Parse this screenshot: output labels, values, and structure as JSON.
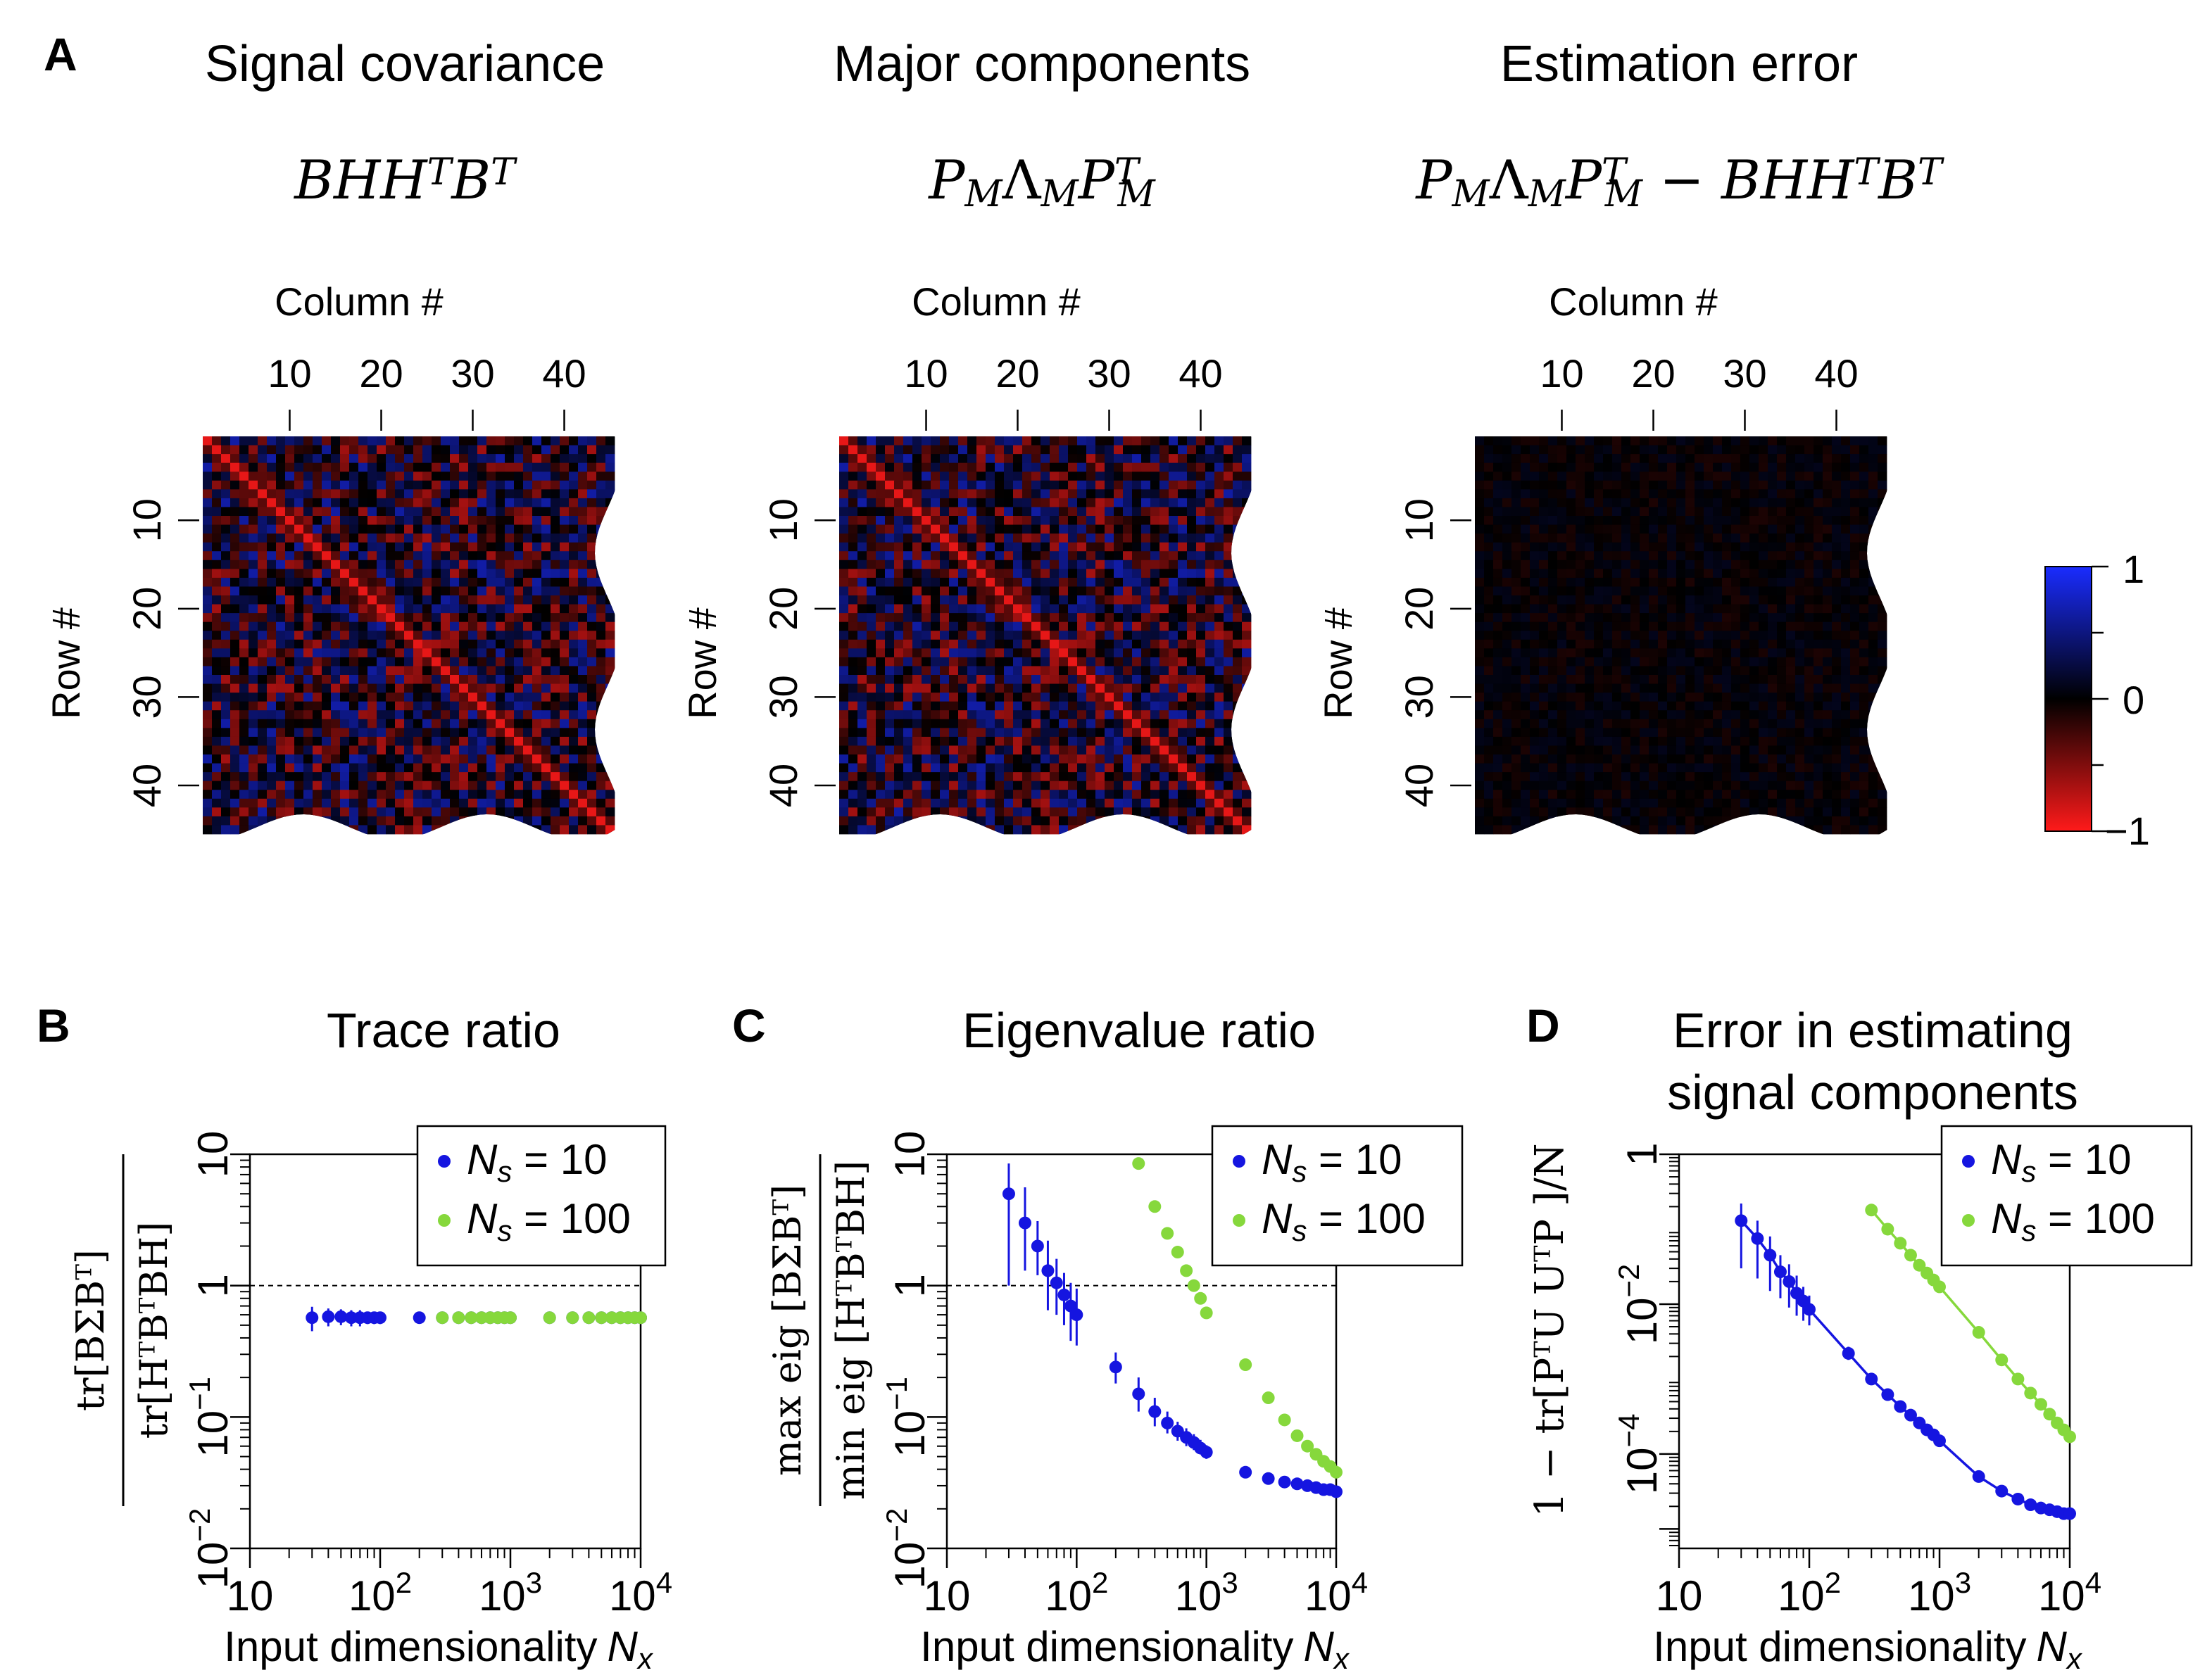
{
  "panel_letters": {
    "a": "A",
    "b": "B",
    "c": "C",
    "d": "D"
  },
  "heatmaps": {
    "colorbar": {
      "max_label": "1",
      "mid_label": "0",
      "min_label": "−1",
      "high_color": "#1a2cff",
      "mid_color": "#000000",
      "low_color": "#ff1a1a"
    },
    "column_label": "Column #",
    "row_label": "Row #",
    "col_ticks": [
      "10",
      "20",
      "30",
      "40"
    ],
    "row_ticks": [
      "10",
      "20",
      "30",
      "40"
    ],
    "size": 45,
    "panels": [
      {
        "title": "Signal covariance",
        "formula": [
          {
            "t": "B"
          },
          {
            "t": "H"
          },
          {
            "t": "H"
          },
          {
            "t": "T",
            "pos": "sup"
          },
          {
            "t": "B"
          },
          {
            "t": "T",
            "pos": "sup"
          }
        ],
        "intensity": 1.0,
        "diag": 0.9
      },
      {
        "title": "Major components",
        "formula": [
          {
            "t": "P"
          },
          {
            "t": "M",
            "pos": "sub"
          },
          {
            "t": "Λ",
            "up": true
          },
          {
            "t": "M",
            "pos": "sub"
          },
          {
            "t": "P"
          },
          {
            "t": "T",
            "pos": "supsub",
            "sub": "M"
          }
        ],
        "intensity": 1.0,
        "diag": 0.9
      },
      {
        "title": "Estimation error",
        "formula": [
          {
            "t": "P"
          },
          {
            "t": "M",
            "pos": "sub"
          },
          {
            "t": "Λ",
            "up": true
          },
          {
            "t": "M",
            "pos": "sub"
          },
          {
            "t": "P"
          },
          {
            "t": "T",
            "pos": "supsub",
            "sub": "M"
          },
          {
            "t": " − ",
            "up": true
          },
          {
            "t": "B"
          },
          {
            "t": "H"
          },
          {
            "t": "H"
          },
          {
            "t": "T",
            "pos": "sup"
          },
          {
            "t": "B"
          },
          {
            "t": "T",
            "pos": "sup"
          }
        ],
        "intensity": 0.14,
        "diag": 0.0
      }
    ]
  },
  "chart_data": [
    {
      "type": "scatter",
      "title": "Trace ratio",
      "xlabel": "Input dimensionality",
      "xlabel_var": "N",
      "xlabel_sub": "x",
      "ylabel_num": "tr[BΣBᵀ]",
      "ylabel_den": "tr[HᵀBᵀBH]",
      "x_ticks": [
        {
          "v": 10,
          "label": "10"
        },
        {
          "v": 100,
          "label": "10",
          "exp": "2"
        },
        {
          "v": 1000,
          "label": "10",
          "exp": "3"
        },
        {
          "v": 10000,
          "label": "10",
          "exp": "4"
        }
      ],
      "y_ticks": [
        {
          "v": 0.01,
          "label": "10",
          "exp": "−2"
        },
        {
          "v": 0.1,
          "label": "10",
          "exp": "−1"
        },
        {
          "v": 1,
          "label": "1"
        },
        {
          "v": 10,
          "label": "10"
        }
      ],
      "xlim": [
        10,
        10000
      ],
      "ylim": [
        0.01,
        10
      ],
      "reference_line": 1,
      "legend": [
        {
          "name": "N",
          "sub": "s",
          "value": " = 10",
          "color": "#1515e0"
        },
        {
          "name": "N",
          "sub": "s",
          "value": " = 100",
          "color": "#86d83c"
        }
      ],
      "series": [
        {
          "name": "Ns = 10",
          "color": "#1515e0",
          "x": [
            30,
            40,
            50,
            60,
            70,
            80,
            90,
            100,
            200,
            300,
            400,
            500,
            600,
            700,
            800,
            900,
            1000,
            2000,
            3000,
            4000,
            5000,
            6000,
            7000,
            8000,
            9000,
            10000
          ],
          "y": [
            0.57,
            0.58,
            0.58,
            0.57,
            0.57,
            0.57,
            0.57,
            0.57,
            0.57,
            0.57,
            0.57,
            0.57,
            0.57,
            0.57,
            0.57,
            0.57,
            0.57,
            0.57,
            0.57,
            0.57,
            0.57,
            0.57,
            0.57,
            0.57,
            0.57,
            0.57
          ],
          "err": [
            0.12,
            0.09,
            0.08,
            0.08,
            0.08,
            0.06,
            0.06,
            0.06,
            0.04,
            0.04,
            0.03,
            0.03,
            0.03,
            0.03,
            0.03,
            0.03,
            0.03,
            0.02,
            0.02,
            0.02,
            0.02,
            0.02,
            0.02,
            0.02,
            0.02,
            0.02
          ]
        },
        {
          "name": "Ns = 100",
          "color": "#86d83c",
          "x": [
            300,
            400,
            500,
            600,
            700,
            800,
            900,
            1000,
            2000,
            3000,
            4000,
            5000,
            6000,
            7000,
            8000,
            9000,
            10000
          ],
          "y": [
            0.57,
            0.57,
            0.57,
            0.57,
            0.57,
            0.57,
            0.57,
            0.57,
            0.57,
            0.57,
            0.57,
            0.57,
            0.57,
            0.57,
            0.57,
            0.57,
            0.57
          ],
          "err": [
            0.02,
            0.02,
            0.02,
            0.02,
            0.02,
            0.02,
            0.02,
            0.02,
            0.02,
            0.02,
            0.02,
            0.02,
            0.02,
            0.02,
            0.02,
            0.02,
            0.02
          ]
        }
      ]
    },
    {
      "type": "scatter",
      "title": "Eigenvalue ratio",
      "xlabel": "Input dimensionality",
      "xlabel_var": "N",
      "xlabel_sub": "x",
      "ylabel_num": "max eig [BΣBᵀ]",
      "ylabel_den": "min eig [HᵀBᵀBH]",
      "x_ticks": [
        {
          "v": 10,
          "label": "10"
        },
        {
          "v": 100,
          "label": "10",
          "exp": "2"
        },
        {
          "v": 1000,
          "label": "10",
          "exp": "3"
        },
        {
          "v": 10000,
          "label": "10",
          "exp": "4"
        }
      ],
      "y_ticks": [
        {
          "v": 0.01,
          "label": "10",
          "exp": "−2"
        },
        {
          "v": 0.1,
          "label": "10",
          "exp": "−1"
        },
        {
          "v": 1,
          "label": "1"
        },
        {
          "v": 10,
          "label": "10"
        }
      ],
      "xlim": [
        10,
        10000
      ],
      "ylim": [
        0.01,
        10
      ],
      "reference_line": 1,
      "legend": [
        {
          "name": "N",
          "sub": "s",
          "value": " = 10",
          "color": "#1515e0"
        },
        {
          "name": "N",
          "sub": "s",
          "value": " = 100",
          "color": "#86d83c"
        }
      ],
      "series": [
        {
          "name": "Ns = 10",
          "color": "#1515e0",
          "x": [
            30,
            40,
            50,
            60,
            70,
            80,
            90,
            100,
            200,
            300,
            400,
            500,
            600,
            700,
            800,
            900,
            1000,
            2000,
            3000,
            4000,
            5000,
            6000,
            7000,
            8000,
            9000,
            10000
          ],
          "y": [
            5.0,
            3.0,
            2.0,
            1.3,
            1.05,
            0.85,
            0.7,
            0.6,
            0.24,
            0.15,
            0.11,
            0.09,
            0.078,
            0.07,
            0.064,
            0.058,
            0.054,
            0.038,
            0.034,
            0.032,
            0.031,
            0.03,
            0.029,
            0.028,
            0.028,
            0.027
          ],
          "err_lo": [
            1.0,
            1.3,
            1.2,
            0.65,
            0.6,
            0.5,
            0.38,
            0.35,
            0.18,
            0.11,
            0.085,
            0.075,
            0.066,
            0.06,
            0.056,
            0.052,
            0.048,
            0.035,
            0.031,
            0.03,
            0.029,
            0.028,
            0.027,
            0.027,
            0.026,
            0.026
          ],
          "err_hi": [
            8.5,
            5.6,
            3.1,
            2.2,
            1.6,
            1.25,
            1.05,
            0.95,
            0.31,
            0.2,
            0.14,
            0.11,
            0.092,
            0.082,
            0.074,
            0.067,
            0.061,
            0.042,
            0.037,
            0.034,
            0.033,
            0.032,
            0.031,
            0.03,
            0.03,
            0.029
          ]
        },
        {
          "name": "Ns = 100",
          "color": "#86d83c",
          "x": [
            300,
            400,
            500,
            600,
            700,
            800,
            900,
            1000,
            2000,
            3000,
            4000,
            5000,
            6000,
            7000,
            8000,
            9000,
            10000
          ],
          "y": [
            8.5,
            4.0,
            2.5,
            1.8,
            1.3,
            1.0,
            0.8,
            0.62,
            0.25,
            0.14,
            0.095,
            0.072,
            0.06,
            0.052,
            0.046,
            0.042,
            0.038
          ]
        }
      ]
    },
    {
      "type": "line",
      "title": "Error in estimating",
      "title_line2": "signal components",
      "xlabel": "Input dimensionality",
      "xlabel_var": "N",
      "xlabel_sub": "x",
      "ylabel": "1 − tr[PᵀU UᵀP ]/N",
      "x_ticks": [
        {
          "v": 10,
          "label": "10"
        },
        {
          "v": 100,
          "label": "10",
          "exp": "2"
        },
        {
          "v": 1000,
          "label": "10",
          "exp": "3"
        },
        {
          "v": 10000,
          "label": "10",
          "exp": "4"
        }
      ],
      "y_ticks": [
        {
          "v": 1e-05,
          "label": ""
        },
        {
          "v": 0.0001,
          "label": "10",
          "exp": "−4"
        },
        {
          "v": 0.01,
          "label": "10",
          "exp": "−2"
        },
        {
          "v": 1,
          "label": "1"
        }
      ],
      "xlim": [
        10,
        10000
      ],
      "ylim": [
        5.5e-06,
        1
      ],
      "legend": [
        {
          "name": "N",
          "sub": "s",
          "value": " = 10",
          "color": "#1515e0"
        },
        {
          "name": "N",
          "sub": "s",
          "value": " = 100",
          "color": "#86d83c"
        }
      ],
      "series": [
        {
          "name": "Ns = 10",
          "color": "#1515e0",
          "x": [
            30,
            40,
            50,
            60,
            70,
            80,
            90,
            100,
            200,
            300,
            400,
            500,
            600,
            700,
            800,
            900,
            1000,
            2000,
            3000,
            4000,
            5000,
            6000,
            7000,
            8000,
            9000,
            10000
          ],
          "y": [
            0.13,
            0.075,
            0.045,
            0.027,
            0.02,
            0.014,
            0.011,
            0.0085,
            0.0022,
            0.001,
            0.00062,
            0.00043,
            0.00033,
            0.00026,
            0.00021,
            0.00018,
            0.00015,
            5e-05,
            3.2e-05,
            2.5e-05,
            2.1e-05,
            1.9e-05,
            1.8e-05,
            1.7e-05,
            1.6e-05,
            1.6e-05
          ],
          "err_lo": [
            0.03,
            0.022,
            0.015,
            0.012,
            0.009,
            0.007,
            0.006,
            0.0052,
            0.0018,
            0.0009,
            0.00055,
            0.0004,
            0.0003,
            0.00024,
            0.0002,
            0.00017,
            0.00014,
            4.7e-05,
            3e-05,
            2.4e-05,
            2e-05,
            1.8e-05,
            1.7e-05,
            1.6e-05,
            1.5e-05,
            1.5e-05
          ],
          "err_hi": [
            0.22,
            0.13,
            0.08,
            0.045,
            0.034,
            0.024,
            0.017,
            0.013,
            0.0027,
            0.0011,
            0.0007,
            0.00047,
            0.00036,
            0.00028,
            0.00023,
            0.00019,
            0.00016,
            5.3e-05,
            3.4e-05,
            2.6e-05,
            2.2e-05,
            2e-05,
            1.9e-05,
            1.8e-05,
            1.7e-05,
            1.7e-05
          ]
        },
        {
          "name": "Ns = 100",
          "color": "#86d83c",
          "x": [
            300,
            400,
            500,
            600,
            700,
            800,
            900,
            1000,
            2000,
            3000,
            4000,
            5000,
            6000,
            7000,
            8000,
            9000,
            10000
          ],
          "y": [
            0.18,
            0.1,
            0.065,
            0.045,
            0.033,
            0.026,
            0.021,
            0.017,
            0.0042,
            0.0018,
            0.001,
            0.00065,
            0.00046,
            0.00034,
            0.00026,
            0.00021,
            0.00017
          ]
        }
      ]
    }
  ]
}
